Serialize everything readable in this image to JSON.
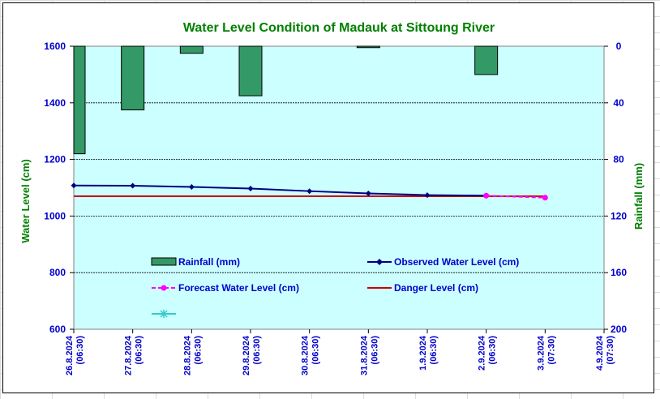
{
  "chart_data": {
    "type": "bar+line",
    "title": "Water Level Condition of Madauk at Sittoung River",
    "ylabel": "Water Level (cm)",
    "y2label": "Rainfall (mm)",
    "ylim": [
      600,
      1600
    ],
    "y_ticks": [
      "1600",
      "1400",
      "1200",
      "1000",
      "800",
      "600"
    ],
    "y_tick_values": [
      1600,
      1400,
      1200,
      1000,
      800,
      600
    ],
    "y2lim": [
      0,
      200
    ],
    "y2_inverted": true,
    "y2_ticks": [
      "0",
      "40",
      "80",
      "120",
      "160",
      "200"
    ],
    "y2_tick_values": [
      0,
      40,
      80,
      120,
      160,
      200
    ],
    "x_ticks": [
      {
        "date": "26.8.2024",
        "time": "(06:30)"
      },
      {
        "date": "27.8.2024",
        "time": "(06:30)"
      },
      {
        "date": "28.8.2024",
        "time": "(06:30)"
      },
      {
        "date": "29.8.2024",
        "time": "(06:30)"
      },
      {
        "date": "30.8.2024",
        "time": "(06:30)"
      },
      {
        "date": "31.8.2024",
        "time": "(06:30)"
      },
      {
        "date": "1.9.2024",
        "time": "(06:30)"
      },
      {
        "date": "2.9.2024",
        "time": "(06:30)"
      },
      {
        "date": "3.9.2024",
        "time": "(07:30)"
      },
      {
        "date": "4.9.2024",
        "time": "(07:30)"
      }
    ],
    "grid": true,
    "rainfall": {
      "name": "Rainfall (mm)",
      "values": [
        76,
        45,
        5,
        35,
        0,
        1,
        0,
        20,
        0
      ],
      "color": "#339966"
    },
    "observed": {
      "name": "Observed Water Level (cm)",
      "values": [
        1108,
        1107,
        1103,
        1097,
        1088,
        1080,
        1074,
        1072
      ],
      "color": "#000080"
    },
    "forecast": {
      "name": "Forecast Water Level (cm)",
      "start_index": 7,
      "values": [
        1072,
        1065
      ],
      "color": "#ff00ff"
    },
    "danger": {
      "name": "Danger Level (cm)",
      "value": 1070,
      "color": "#cc0000"
    },
    "extra_legend_color": "#33cccc",
    "plot_bg": "#ccffff",
    "title_color": "#008000",
    "text_color": "#0000cc"
  }
}
